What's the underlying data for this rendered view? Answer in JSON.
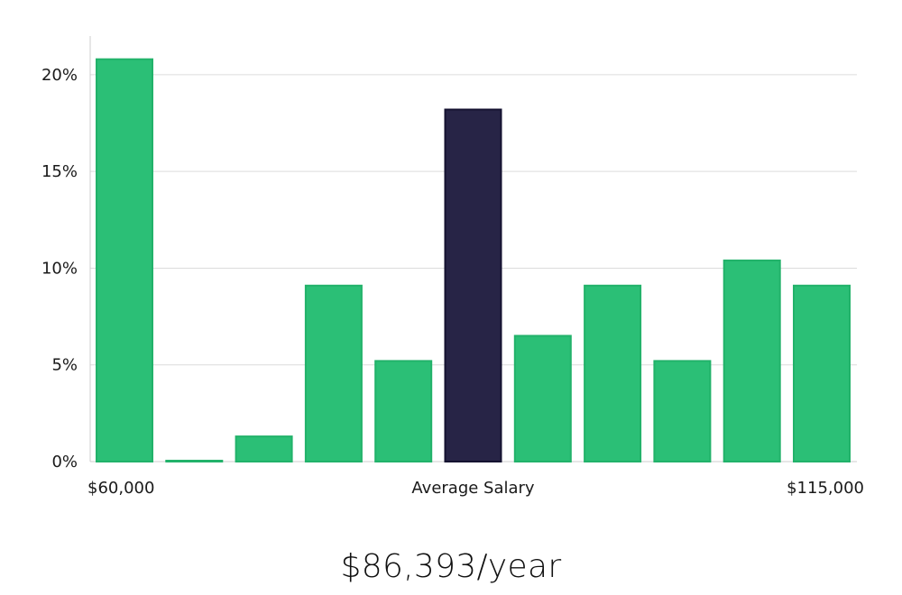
{
  "chart_data": {
    "type": "bar",
    "categories": [
      "1",
      "2",
      "3",
      "4",
      "5",
      "6",
      "7",
      "8",
      "9",
      "10",
      "11"
    ],
    "values": [
      20.8,
      0.0,
      1.3,
      9.1,
      5.2,
      18.2,
      6.5,
      9.1,
      5.2,
      10.4,
      9.1
    ],
    "highlight_index": 5,
    "ylim": [
      0,
      22
    ],
    "y_ticks": [
      0,
      5,
      10,
      15,
      20
    ],
    "y_tick_labels": [
      "0%",
      "5%",
      "10%",
      "15%",
      "20%"
    ],
    "x_labels": {
      "left": "$60,000",
      "center": "Average Salary",
      "right": "$115,000"
    },
    "grid": true,
    "colors": {
      "bar": "#2bbf76",
      "bar_edge": "#22b26a",
      "highlight": "#272446",
      "highlight_edge": "#141230",
      "grid": "#dcdcdc",
      "axis": "#cccccc"
    }
  },
  "headline": "$86,393/year"
}
